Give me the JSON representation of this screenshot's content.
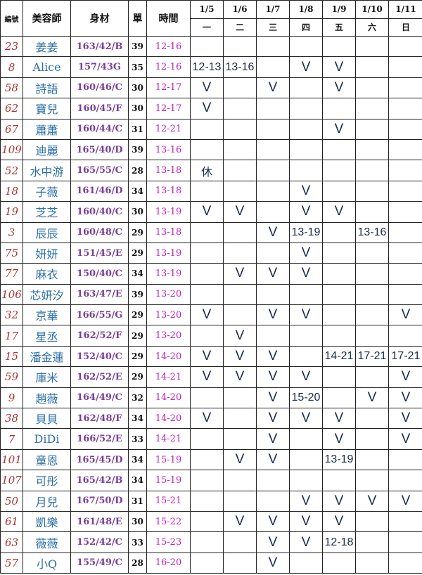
{
  "headers": {
    "num": "編號",
    "name": "美容師",
    "size": "身材",
    "count": "單",
    "time": "時間"
  },
  "days": [
    {
      "date": "1/5",
      "weekday": "一"
    },
    {
      "date": "1/6",
      "weekday": "二"
    },
    {
      "date": "1/7",
      "weekday": "三"
    },
    {
      "date": "1/8",
      "weekday": "四"
    },
    {
      "date": "1/9",
      "weekday": "五"
    },
    {
      "date": "1/10",
      "weekday": "六"
    },
    {
      "date": "1/11",
      "weekday": "日"
    }
  ],
  "colors": {
    "num": "#b03030",
    "name": "#2a6fa8",
    "size": "#7a3d9a",
    "time": "#c020c0",
    "schedule": "#1a2a4a"
  },
  "rows": [
    {
      "num": "23",
      "name": "姜姜",
      "size": "163/42/B",
      "count": "39",
      "time": "12-16",
      "schedule": [
        "",
        "",
        "",
        "",
        "",
        "",
        ""
      ]
    },
    {
      "num": "8",
      "name": "Alice",
      "size": "157/43G",
      "count": "35",
      "time": "12-16",
      "schedule": [
        "12-13",
        "13-16",
        "",
        "V",
        "V",
        "",
        ""
      ]
    },
    {
      "num": "58",
      "name": "詩語",
      "size": "160/46/C",
      "count": "30",
      "time": "12-17",
      "schedule": [
        "V",
        "",
        "V",
        "",
        "V",
        "",
        ""
      ]
    },
    {
      "num": "62",
      "name": "寶兒",
      "size": "160/45/F",
      "count": "30",
      "time": "12-17",
      "schedule": [
        "V",
        "",
        "",
        "",
        "",
        "",
        ""
      ]
    },
    {
      "num": "67",
      "name": "蕭蕭",
      "size": "160/44/C",
      "count": "31",
      "time": "12-21",
      "schedule": [
        "",
        "",
        "",
        "",
        "V",
        "",
        ""
      ]
    },
    {
      "num": "109",
      "name": "迪麗",
      "size": "165/40/D",
      "count": "39",
      "time": "13-16",
      "schedule": [
        "",
        "",
        "",
        "",
        "",
        "",
        ""
      ]
    },
    {
      "num": "52",
      "name": "水中游",
      "size": "165/55/C",
      "count": "28",
      "time": "13-18",
      "schedule": [
        "休",
        "",
        "",
        "",
        "",
        "",
        ""
      ]
    },
    {
      "num": "18",
      "name": "子薇",
      "size": "161/46/D",
      "count": "34",
      "time": "13-18",
      "schedule": [
        "",
        "",
        "",
        "V",
        "",
        "",
        ""
      ]
    },
    {
      "num": "19",
      "name": "芝芝",
      "size": "160/40/C",
      "count": "30",
      "time": "13-19",
      "schedule": [
        "V",
        "V",
        "",
        "V",
        "V",
        "",
        ""
      ]
    },
    {
      "num": "3",
      "name": "辰辰",
      "size": "160/48/C",
      "count": "29",
      "time": "13-18",
      "schedule": [
        "",
        "",
        "V",
        "13-19",
        "",
        "13-16",
        ""
      ]
    },
    {
      "num": "75",
      "name": "妍妍",
      "size": "151/45/E",
      "count": "29",
      "time": "13-19",
      "schedule": [
        "",
        "",
        "",
        "V",
        "",
        "",
        ""
      ]
    },
    {
      "num": "77",
      "name": "麻衣",
      "size": "150/40/C",
      "count": "34",
      "time": "13-19",
      "schedule": [
        "",
        "V",
        "V",
        "V",
        "",
        "",
        ""
      ]
    },
    {
      "num": "106",
      "name": "芯妍汐",
      "size": "163/47/E",
      "count": "39",
      "time": "13-20",
      "schedule": [
        "",
        "",
        "",
        "",
        "",
        "",
        ""
      ]
    },
    {
      "num": "32",
      "name": "京華",
      "size": "166/55/G",
      "count": "29",
      "time": "13-20",
      "schedule": [
        "V",
        "",
        "V",
        "V",
        "",
        "",
        "V"
      ]
    },
    {
      "num": "17",
      "name": "星丞",
      "size": "162/52/F",
      "count": "29",
      "time": "13-20",
      "schedule": [
        "",
        "V",
        "",
        "",
        "",
        "",
        ""
      ]
    },
    {
      "num": "15",
      "name": "潘金蓮",
      "size": "152/40/C",
      "count": "29",
      "time": "14-20",
      "schedule": [
        "V",
        "V",
        "V",
        "",
        "14-21",
        "17-21",
        "17-21"
      ]
    },
    {
      "num": "59",
      "name": "庫米",
      "size": "162/52/E",
      "count": "29",
      "time": "14-21",
      "schedule": [
        "V",
        "V",
        "V",
        "V",
        "",
        "",
        "V"
      ]
    },
    {
      "num": "9",
      "name": "趙薇",
      "size": "164/49/C",
      "count": "32",
      "time": "14-20",
      "schedule": [
        "",
        "",
        "V",
        "15-20",
        "",
        "V",
        "V"
      ]
    },
    {
      "num": "38",
      "name": "貝貝",
      "size": "162/48/F",
      "count": "34",
      "time": "14-20",
      "schedule": [
        "V",
        "",
        "V",
        "V",
        "V",
        "",
        "V"
      ]
    },
    {
      "num": "7",
      "name": "DiDi",
      "size": "166/52/E",
      "count": "33",
      "time": "14-21",
      "schedule": [
        "",
        "",
        "V",
        "",
        "V",
        "",
        "V"
      ]
    },
    {
      "num": "101",
      "name": "童恩",
      "size": "165/45/D",
      "count": "34",
      "time": "15-19",
      "schedule": [
        "",
        "V",
        "V",
        "",
        "13-19",
        "",
        ""
      ]
    },
    {
      "num": "107",
      "name": "可彤",
      "size": "165/42/B",
      "count": "34",
      "time": "15-19",
      "schedule": [
        "",
        "",
        "",
        "",
        "",
        "",
        ""
      ]
    },
    {
      "num": "50",
      "name": "月兒",
      "size": "167/50/D",
      "count": "31",
      "time": "15-21",
      "schedule": [
        "",
        "",
        "",
        "V",
        "V",
        "V",
        "V"
      ]
    },
    {
      "num": "61",
      "name": "凱樂",
      "size": "161/48/E",
      "count": "30",
      "time": "15-22",
      "schedule": [
        "",
        "V",
        "V",
        "V",
        "V",
        "",
        ""
      ]
    },
    {
      "num": "63",
      "name": "薇薇",
      "size": "152/42/C",
      "count": "33",
      "time": "15-23",
      "schedule": [
        "",
        "",
        "V",
        "V",
        "12-18",
        "",
        ""
      ]
    },
    {
      "num": "57",
      "name": "小Q",
      "size": "155/49/C",
      "count": "28",
      "time": "16-20",
      "schedule": [
        "",
        "",
        "V",
        "",
        "",
        "",
        ""
      ]
    }
  ]
}
